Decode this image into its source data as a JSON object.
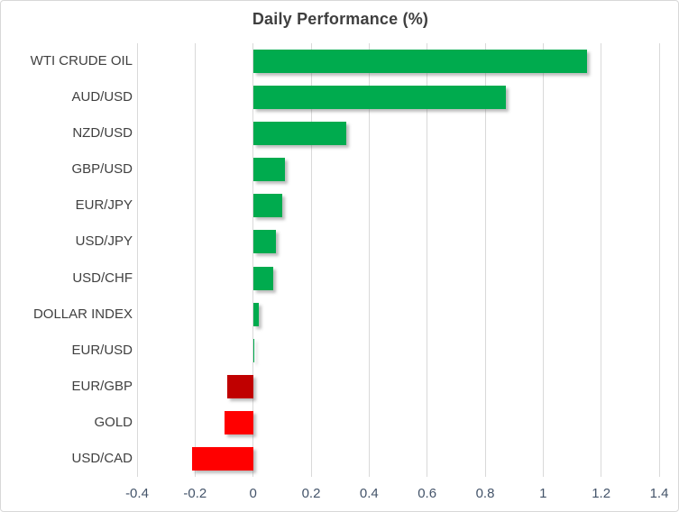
{
  "chart_data": {
    "type": "bar",
    "orientation": "horizontal",
    "title": "Daily Performance (%)",
    "categories": [
      "WTI CRUDE OIL",
      "AUD/USD",
      "NZD/USD",
      "GBP/USD",
      "EUR/JPY",
      "USD/JPY",
      "USD/CHF",
      "DOLLAR INDEX",
      "EUR/USD",
      "EUR/GBP",
      "GOLD",
      "USD/CAD"
    ],
    "values": [
      1.15,
      0.87,
      0.32,
      0.11,
      0.1,
      0.08,
      0.07,
      0.02,
      0.0,
      -0.09,
      -0.1,
      -0.21
    ],
    "bar_colors": [
      "#00AB4E",
      "#00AB4E",
      "#00AB4E",
      "#00AB4E",
      "#00AB4E",
      "#00AB4E",
      "#00AB4E",
      "#00AB4E",
      "#00AB4E",
      "#C00000",
      "#FF0000",
      "#FF0000"
    ],
    "xlabel": "",
    "ylabel": "",
    "xlim": [
      -0.4,
      1.4
    ],
    "xtick_values": [
      -0.4,
      -0.2,
      0,
      0.2,
      0.4,
      0.6,
      0.8,
      1,
      1.2,
      1.4
    ],
    "xtick_labels": [
      "-0.4",
      "-0.2",
      "0",
      "0.2",
      "0.4",
      "0.6",
      "0.8",
      "1",
      "1.2",
      "1.4"
    ],
    "grid": "vertical",
    "legend": "none",
    "colors": {
      "positive": "#00AB4E",
      "negative": "#FF0000",
      "negative_dark": "#C00000",
      "gridline": "#D9D9D9",
      "title_text": "#3F3F3F",
      "category_text": "#404040",
      "tick_text": "#44546A"
    }
  }
}
